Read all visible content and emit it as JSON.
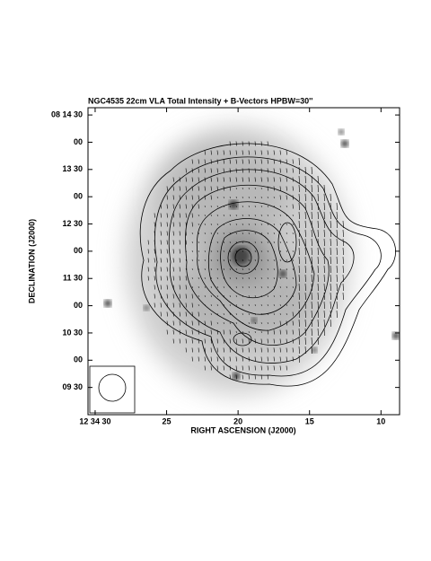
{
  "chart_data": {
    "type": "image",
    "title": "NGC4535  22cm  VLA  Total Intensity + B-Vectors  HPBW=30''",
    "x_label": "RIGHT ASCENSION (J2000)",
    "y_label": "DECLINATION (J2000)",
    "xlim": [
      30.5,
      8.7
    ],
    "xticks": [
      {
        "value": 30,
        "label": "12 34 30"
      },
      25,
      20,
      15,
      10
    ],
    "ylim": [
      540,
      878
    ],
    "yticks": [
      {
        "value": 870,
        "label": "08 14 30"
      },
      {
        "value": 840,
        "label": "00"
      },
      {
        "value": 810,
        "label": "13 30"
      },
      {
        "value": 780,
        "label": "00"
      },
      {
        "value": 750,
        "label": "12 30"
      },
      {
        "value": 720,
        "label": "00"
      },
      {
        "value": 690,
        "label": "11 30"
      },
      {
        "value": 660,
        "label": "00"
      },
      {
        "value": 630,
        "label": "10 30"
      },
      {
        "value": 600,
        "label": "00"
      },
      {
        "value": 570,
        "label": "09 30"
      }
    ]
  }
}
